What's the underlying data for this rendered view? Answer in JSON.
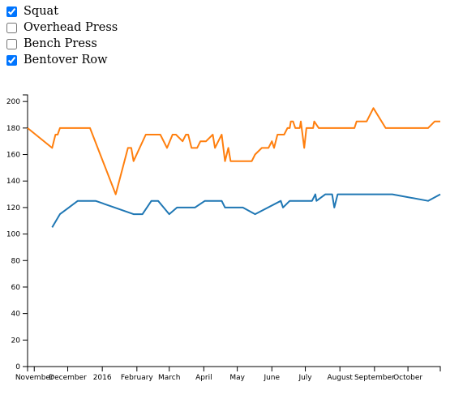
{
  "controls": [
    {
      "label": "Squat",
      "checked": true
    },
    {
      "label": "Overhead Press",
      "checked": false
    },
    {
      "label": "Bench Press",
      "checked": false
    },
    {
      "label": "Bentover Row",
      "checked": true
    }
  ],
  "chart_data": {
    "type": "line",
    "title": "",
    "xlabel": "",
    "ylabel": "",
    "ylim": [
      0,
      205
    ],
    "xlim": [
      "2015-10-26",
      "2016-10-30"
    ],
    "y_ticks": [
      0,
      20,
      40,
      60,
      80,
      100,
      120,
      140,
      160,
      180,
      200
    ],
    "x_ticks": [
      {
        "date": "2015-11-01",
        "label": "November"
      },
      {
        "date": "2015-12-01",
        "label": "December"
      },
      {
        "date": "2016-01-01",
        "label": "2016"
      },
      {
        "date": "2016-02-01",
        "label": "February"
      },
      {
        "date": "2016-03-01",
        "label": "March"
      },
      {
        "date": "2016-04-01",
        "label": "April"
      },
      {
        "date": "2016-05-01",
        "label": "May"
      },
      {
        "date": "2016-06-01",
        "label": "June"
      },
      {
        "date": "2016-07-01",
        "label": "July"
      },
      {
        "date": "2016-08-01",
        "label": "August"
      },
      {
        "date": "2016-09-01",
        "label": "September"
      },
      {
        "date": "2016-10-01",
        "label": "October"
      }
    ],
    "series": [
      {
        "color": "#ff7f0e",
        "points": [
          [
            "2015-10-26",
            180
          ],
          [
            "2015-11-17",
            165
          ],
          [
            "2015-11-20",
            175
          ],
          [
            "2015-11-22",
            175
          ],
          [
            "2015-11-24",
            180
          ],
          [
            "2015-12-21",
            180
          ],
          [
            "2016-01-13",
            130
          ],
          [
            "2016-01-24",
            165
          ],
          [
            "2016-01-27",
            165
          ],
          [
            "2016-01-29",
            155
          ],
          [
            "2016-02-09",
            175
          ],
          [
            "2016-02-22",
            175
          ],
          [
            "2016-02-28",
            165
          ],
          [
            "2016-03-04",
            175
          ],
          [
            "2016-03-07",
            175
          ],
          [
            "2016-03-13",
            170
          ],
          [
            "2016-03-16",
            175
          ],
          [
            "2016-03-18",
            175
          ],
          [
            "2016-03-21",
            165
          ],
          [
            "2016-03-26",
            165
          ],
          [
            "2016-03-29",
            170
          ],
          [
            "2016-04-03",
            170
          ],
          [
            "2016-04-09",
            175
          ],
          [
            "2016-04-11",
            165
          ],
          [
            "2016-04-14",
            170
          ],
          [
            "2016-04-17",
            175
          ],
          [
            "2016-04-20",
            155
          ],
          [
            "2016-04-23",
            165
          ],
          [
            "2016-04-25",
            155
          ],
          [
            "2016-05-14",
            155
          ],
          [
            "2016-05-17",
            160
          ],
          [
            "2016-05-23",
            165
          ],
          [
            "2016-05-29",
            165
          ],
          [
            "2016-06-01",
            170
          ],
          [
            "2016-06-03",
            165
          ],
          [
            "2016-06-06",
            175
          ],
          [
            "2016-06-12",
            175
          ],
          [
            "2016-06-15",
            180
          ],
          [
            "2016-06-17",
            180
          ],
          [
            "2016-06-18",
            185
          ],
          [
            "2016-06-20",
            185
          ],
          [
            "2016-06-22",
            180
          ],
          [
            "2016-06-26",
            180
          ],
          [
            "2016-06-27",
            185
          ],
          [
            "2016-06-30",
            165
          ],
          [
            "2016-07-02",
            180
          ],
          [
            "2016-07-08",
            180
          ],
          [
            "2016-07-09",
            185
          ],
          [
            "2016-07-13",
            180
          ],
          [
            "2016-08-14",
            180
          ],
          [
            "2016-08-16",
            185
          ],
          [
            "2016-08-25",
            185
          ],
          [
            "2016-08-31",
            195
          ],
          [
            "2016-09-11",
            180
          ],
          [
            "2016-10-19",
            180
          ],
          [
            "2016-10-25",
            185
          ],
          [
            "2016-10-30",
            185
          ]
        ]
      },
      {
        "color": "#1f77b4",
        "points": [
          [
            "2015-11-17",
            105
          ],
          [
            "2015-11-24",
            115
          ],
          [
            "2015-12-02",
            120
          ],
          [
            "2015-12-10",
            125
          ],
          [
            "2015-12-26",
            125
          ],
          [
            "2016-01-29",
            115
          ],
          [
            "2016-02-06",
            115
          ],
          [
            "2016-02-14",
            125
          ],
          [
            "2016-02-20",
            125
          ],
          [
            "2016-03-01",
            115
          ],
          [
            "2016-03-08",
            120
          ],
          [
            "2016-03-24",
            120
          ],
          [
            "2016-04-02",
            125
          ],
          [
            "2016-04-17",
            125
          ],
          [
            "2016-04-20",
            120
          ],
          [
            "2016-05-06",
            120
          ],
          [
            "2016-05-17",
            115
          ],
          [
            "2016-06-09",
            125
          ],
          [
            "2016-06-11",
            120
          ],
          [
            "2016-06-17",
            125
          ],
          [
            "2016-06-28",
            125
          ],
          [
            "2016-07-07",
            125
          ],
          [
            "2016-07-10",
            130
          ],
          [
            "2016-07-11",
            125
          ],
          [
            "2016-07-19",
            130
          ],
          [
            "2016-07-25",
            130
          ],
          [
            "2016-07-27",
            120
          ],
          [
            "2016-07-30",
            130
          ],
          [
            "2016-09-17",
            130
          ],
          [
            "2016-10-19",
            125
          ],
          [
            "2016-10-30",
            130
          ]
        ]
      }
    ]
  }
}
